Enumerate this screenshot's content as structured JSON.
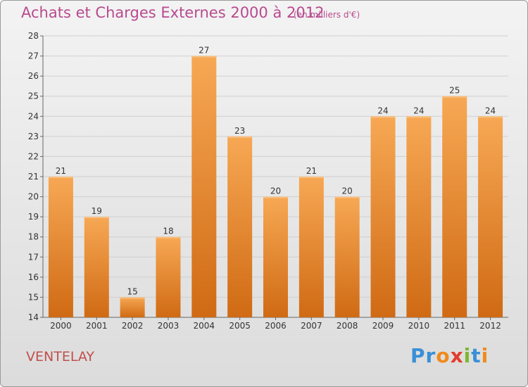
{
  "header": {
    "title": "Achats et Charges Externes 2000 à 2012",
    "unit": "(en milliers d'€)"
  },
  "footer": {
    "commune": "VENTELAY",
    "logo_text": "Proxiti"
  },
  "colors": {
    "title": "#b84a8f",
    "commune": "#c0504d",
    "bar_top": "#f7a854",
    "bar_bottom": "#d06a14",
    "grid": "#cfcfcf"
  },
  "chart_data": {
    "type": "bar",
    "title": "Achats et Charges Externes 2000 à 2012",
    "xlabel": "",
    "ylabel": "",
    "categories": [
      "2000",
      "2001",
      "2002",
      "2003",
      "2004",
      "2005",
      "2006",
      "2007",
      "2008",
      "2009",
      "2010",
      "2011",
      "2012"
    ],
    "values": [
      21,
      19,
      15,
      18,
      27,
      23,
      20,
      21,
      20,
      24,
      24,
      25,
      24
    ],
    "ylim": [
      14,
      28
    ],
    "yticks": [
      14,
      15,
      16,
      17,
      18,
      19,
      20,
      21,
      22,
      23,
      24,
      25,
      26,
      27,
      28
    ],
    "grid": true,
    "data_labels": true
  }
}
